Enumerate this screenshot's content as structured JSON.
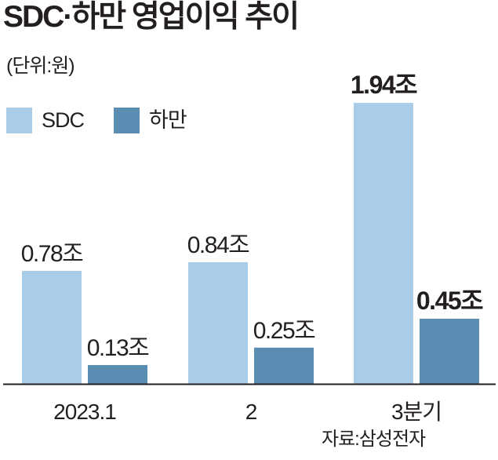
{
  "title": "SDC·하만 영업이익 추이",
  "unit": "(단위:원)",
  "source": "자료:삼성전자",
  "colors": {
    "sdc": "#a9cde8",
    "harman": "#5b8db3",
    "text": "#231f20",
    "axis": "#231f20"
  },
  "chart_data": {
    "type": "bar",
    "title": "SDC·하만 영업이익 추이",
    "ylabel": "",
    "xlabel": "",
    "ylim": [
      0,
      2.0
    ],
    "categories": [
      "2023.1",
      "2",
      "3분기"
    ],
    "series": [
      {
        "name": "SDC",
        "values": [
          0.78,
          0.84,
          1.94
        ],
        "labels": [
          "0.78조",
          "0.84조",
          "1.94조"
        ]
      },
      {
        "name": "하만",
        "values": [
          0.13,
          0.25,
          0.45
        ],
        "labels": [
          "0.13조",
          "0.25조",
          "0.45조"
        ]
      }
    ],
    "emphasized_category": "3분기",
    "legend": "top-left",
    "grid": false
  }
}
